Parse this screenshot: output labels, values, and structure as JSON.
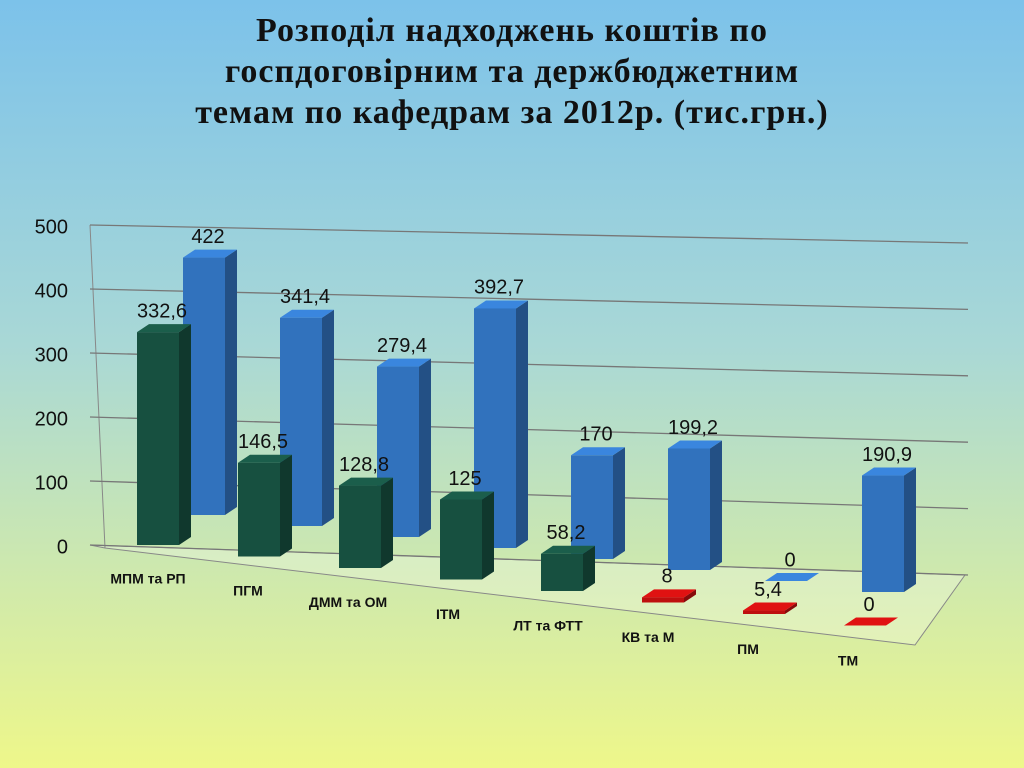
{
  "chart_data": {
    "type": "bar3d",
    "title": [
      "Розподіл надходжень коштів по",
      "госпдоговірним та держбюджетним",
      "темам по кафедрам за 2012р. (тис.грн.)"
    ],
    "categories": [
      "МПМ та РП",
      "ПГМ",
      "ДММ та ОМ",
      "ІТМ",
      "ЛТ та ФТТ",
      "КВ та М",
      "ПМ",
      "ТМ"
    ],
    "series": [
      {
        "color": "#1b5e4b",
        "colors": [
          "#1b5e4b",
          "#1b5e4b",
          "#1b5e4b",
          "#1b5e4b",
          "#1b5e4b",
          "#e01212",
          "#e01212",
          "#e01212"
        ],
        "values": [
          332.6,
          146.5,
          128.8,
          125,
          58.2,
          8,
          5.4,
          0
        ],
        "value_labels": [
          "332,6",
          "146,5",
          "128,8",
          "125",
          "58,2",
          "8",
          "5,4",
          "0"
        ]
      },
      {
        "color": "#3a86de",
        "values": [
          422,
          341.4,
          279.4,
          392.7,
          170,
          199.2,
          0,
          190.9
        ],
        "value_labels": [
          "422",
          "341,4",
          "279,4",
          "392,7",
          "170",
          "199,2",
          "0",
          "190,9"
        ]
      }
    ],
    "ylim": [
      0,
      500
    ],
    "yticks": [
      0,
      100,
      200,
      300,
      400,
      500
    ],
    "grid": true
  }
}
